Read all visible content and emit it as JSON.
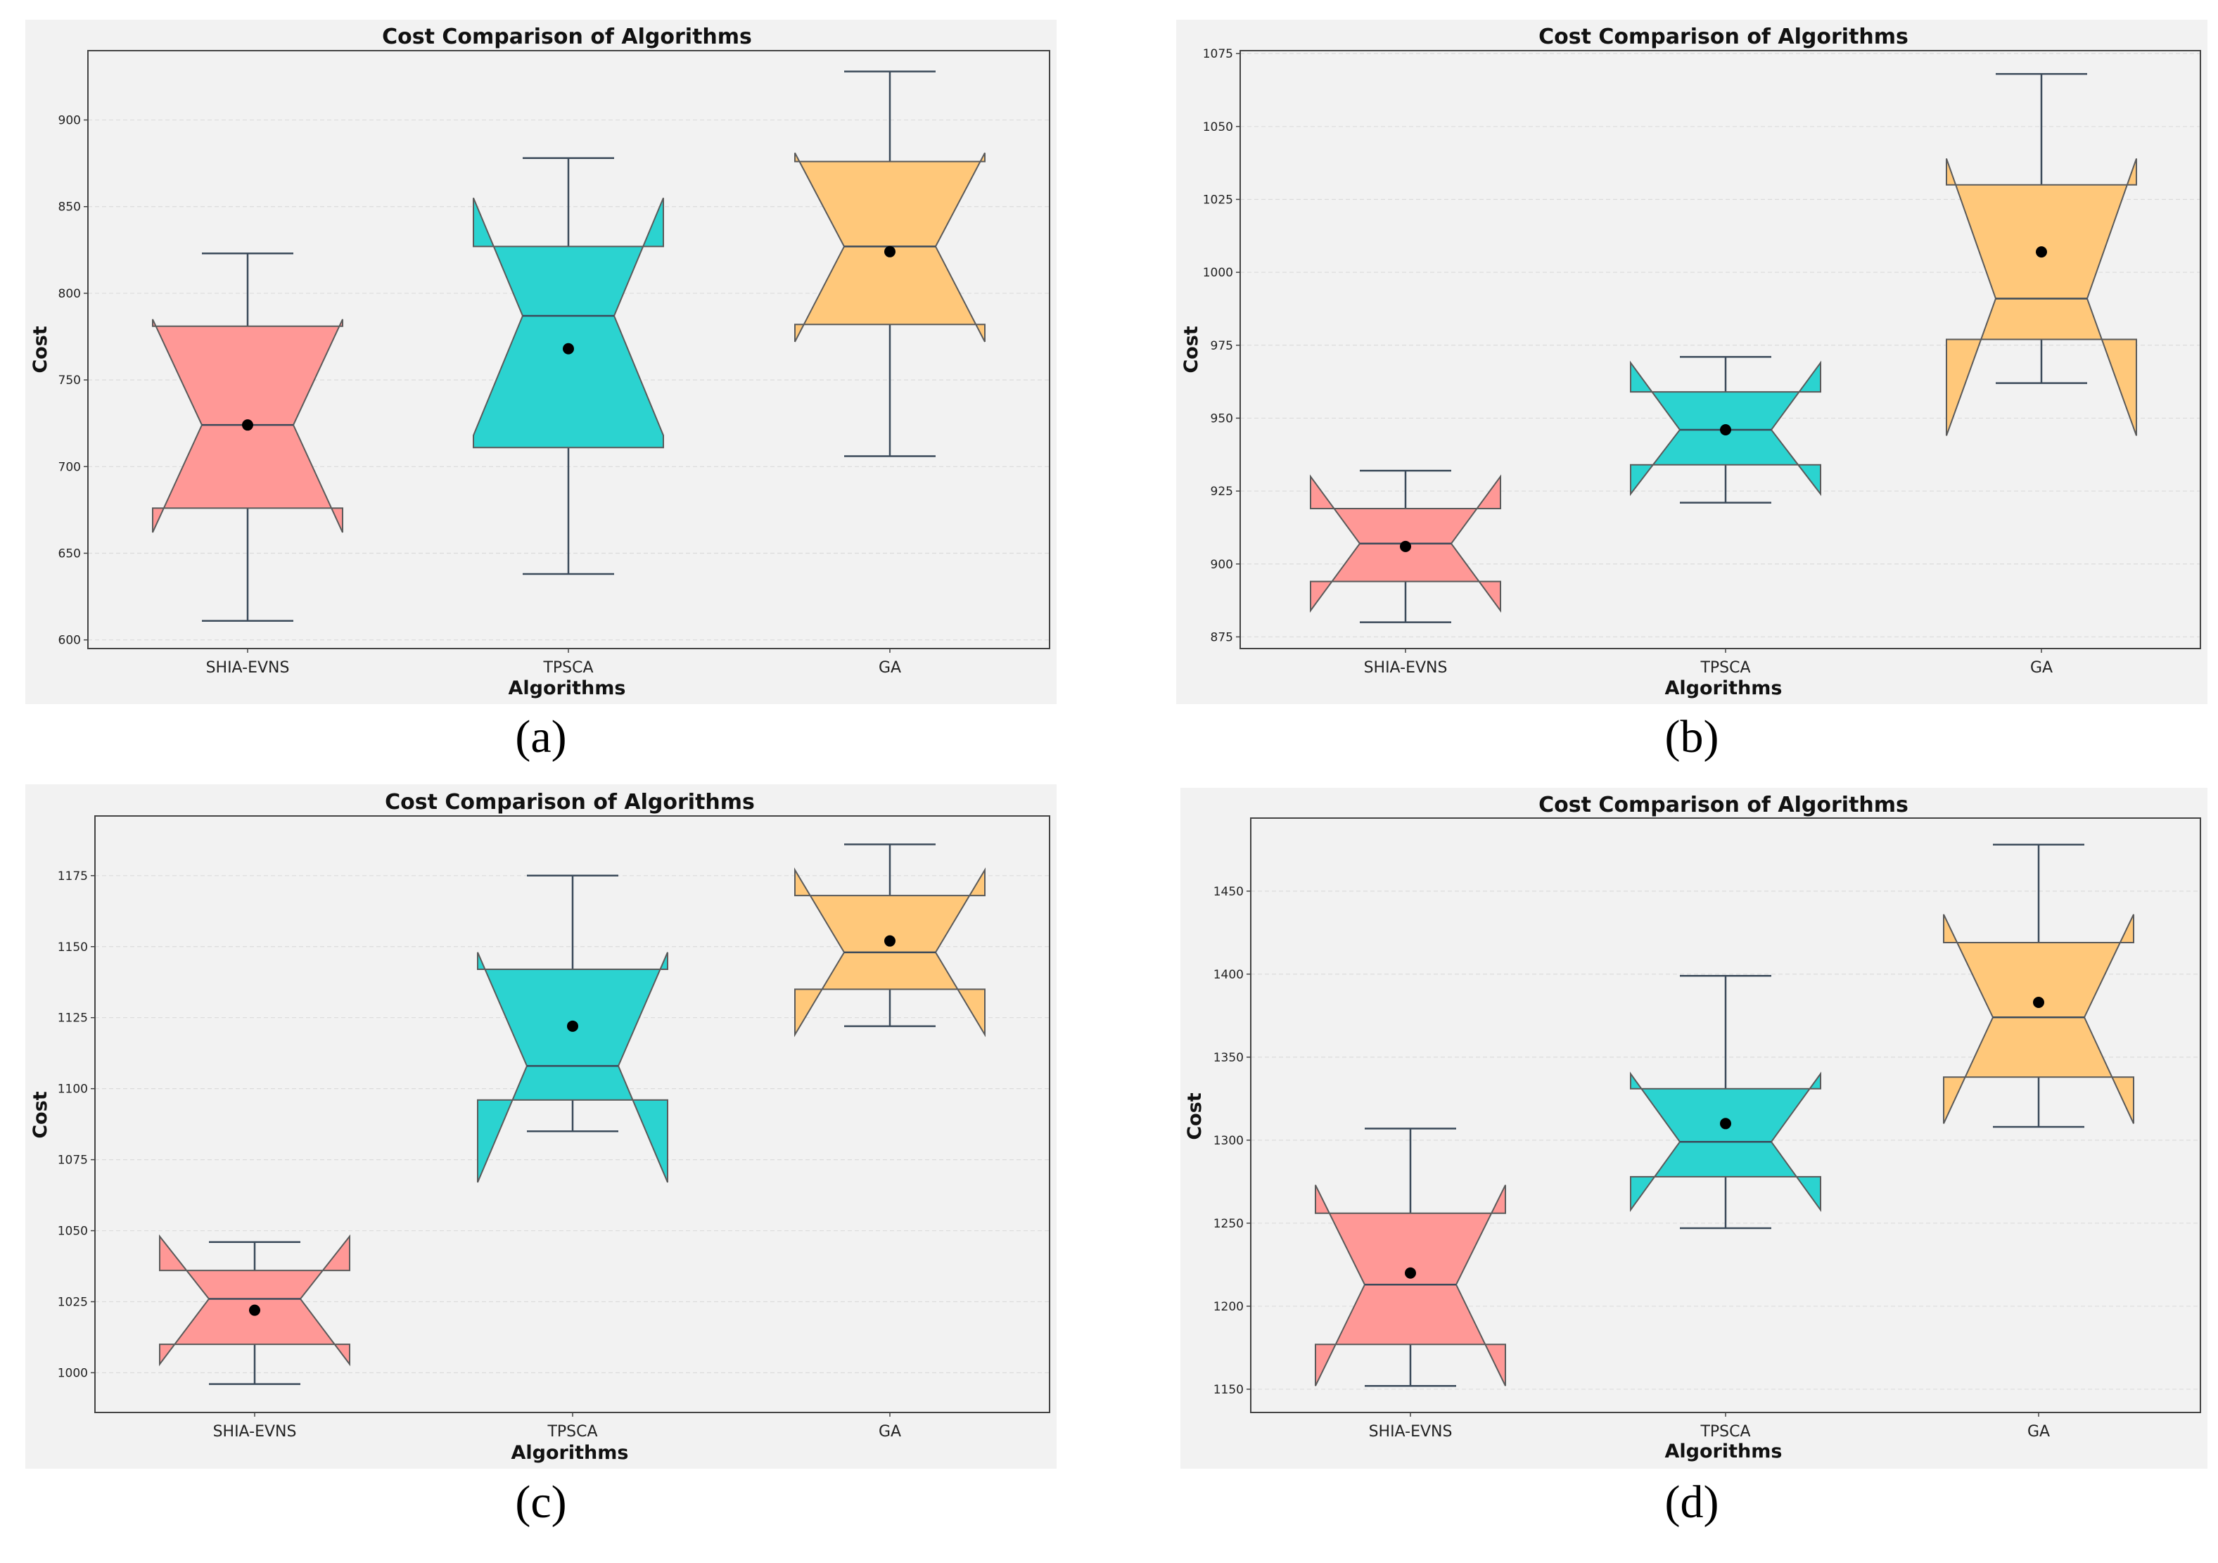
{
  "chart_data": [
    {
      "panel": "(a)",
      "type": "box",
      "title": "Cost Comparison of Algorithms",
      "xlabel": "Algorithms",
      "ylabel": "Cost",
      "ylim": [
        595,
        940
      ],
      "yticks": [
        600,
        650,
        700,
        750,
        800,
        850,
        900
      ],
      "categories": [
        "SHIA-EVNS",
        "TPSCA",
        "GA"
      ],
      "series": [
        {
          "name": "SHIA-EVNS",
          "color": "#ff9896",
          "whisker_low": 611,
          "q1": 676,
          "median": 724,
          "q3": 781,
          "whisker_high": 823,
          "notch_low": 662,
          "notch_high": 785,
          "mean": 724
        },
        {
          "name": "TPSCA",
          "color": "#2bd3d0",
          "whisker_low": 638,
          "q1": 711,
          "median": 787,
          "q3": 827,
          "whisker_high": 878,
          "notch_low": 718,
          "notch_high": 855,
          "mean": 768
        },
        {
          "name": "GA",
          "color": "#ffc87a",
          "whisker_low": 706,
          "q1": 782,
          "median": 827,
          "q3": 876,
          "whisker_high": 928,
          "notch_low": 772,
          "notch_high": 881,
          "mean": 824
        }
      ]
    },
    {
      "panel": "(b)",
      "type": "box",
      "title": "Cost Comparison of Algorithms",
      "xlabel": "Algorithms",
      "ylabel": "Cost",
      "ylim": [
        871,
        1076
      ],
      "yticks": [
        875,
        900,
        925,
        950,
        975,
        1000,
        1025,
        1050,
        1075
      ],
      "categories": [
        "SHIA-EVNS",
        "TPSCA",
        "GA"
      ],
      "series": [
        {
          "name": "SHIA-EVNS",
          "color": "#ff9896",
          "whisker_low": 880,
          "q1": 894,
          "median": 907,
          "q3": 919,
          "whisker_high": 932,
          "notch_low": 884,
          "notch_high": 930,
          "mean": 906
        },
        {
          "name": "TPSCA",
          "color": "#2bd3d0",
          "whisker_low": 921,
          "q1": 934,
          "median": 946,
          "q3": 959,
          "whisker_high": 971,
          "notch_low": 924,
          "notch_high": 969,
          "mean": 946
        },
        {
          "name": "GA",
          "color": "#ffc87a",
          "whisker_low": 962,
          "q1": 977,
          "median": 991,
          "q3": 1030,
          "whisker_high": 1068,
          "notch_low": 944,
          "notch_high": 1039,
          "mean": 1007
        }
      ]
    },
    {
      "panel": "(c)",
      "type": "box",
      "title": "Cost Comparison of Algorithms",
      "xlabel": "Algorithms",
      "ylabel": "Cost",
      "ylim": [
        986,
        1196
      ],
      "yticks": [
        1000,
        1025,
        1050,
        1075,
        1100,
        1125,
        1150,
        1175
      ],
      "categories": [
        "SHIA-EVNS",
        "TPSCA",
        "GA"
      ],
      "series": [
        {
          "name": "SHIA-EVNS",
          "color": "#ff9896",
          "whisker_low": 996,
          "q1": 1010,
          "median": 1026,
          "q3": 1036,
          "whisker_high": 1046,
          "notch_low": 1003,
          "notch_high": 1048,
          "mean": 1022
        },
        {
          "name": "TPSCA",
          "color": "#2bd3d0",
          "whisker_low": 1085,
          "q1": 1096,
          "median": 1108,
          "q3": 1142,
          "whisker_high": 1175,
          "notch_low": 1067,
          "notch_high": 1148,
          "mean": 1122
        },
        {
          "name": "GA",
          "color": "#ffc87a",
          "whisker_low": 1122,
          "q1": 1135,
          "median": 1148,
          "q3": 1168,
          "whisker_high": 1186,
          "notch_low": 1119,
          "notch_high": 1177,
          "mean": 1152
        }
      ]
    },
    {
      "panel": "(d)",
      "type": "box",
      "title": "Cost Comparison of Algorithms",
      "xlabel": "Algorithms",
      "ylabel": "Cost",
      "ylim": [
        1136,
        1494
      ],
      "yticks": [
        1150,
        1200,
        1250,
        1300,
        1350,
        1400,
        1450
      ],
      "categories": [
        "SHIA-EVNS",
        "TPSCA",
        "GA"
      ],
      "series": [
        {
          "name": "SHIA-EVNS",
          "color": "#ff9896",
          "whisker_low": 1152,
          "q1": 1177,
          "median": 1213,
          "q3": 1256,
          "whisker_high": 1307,
          "notch_low": 1152,
          "notch_high": 1273,
          "mean": 1220
        },
        {
          "name": "TPSCA",
          "color": "#2bd3d0",
          "whisker_low": 1247,
          "q1": 1278,
          "median": 1299,
          "q3": 1331,
          "whisker_high": 1399,
          "notch_low": 1258,
          "notch_high": 1340,
          "mean": 1310
        },
        {
          "name": "GA",
          "color": "#ffc87a",
          "whisker_low": 1308,
          "q1": 1338,
          "median": 1374,
          "q3": 1419,
          "whisker_high": 1478,
          "notch_low": 1310,
          "notch_high": 1436,
          "mean": 1383
        }
      ]
    }
  ]
}
